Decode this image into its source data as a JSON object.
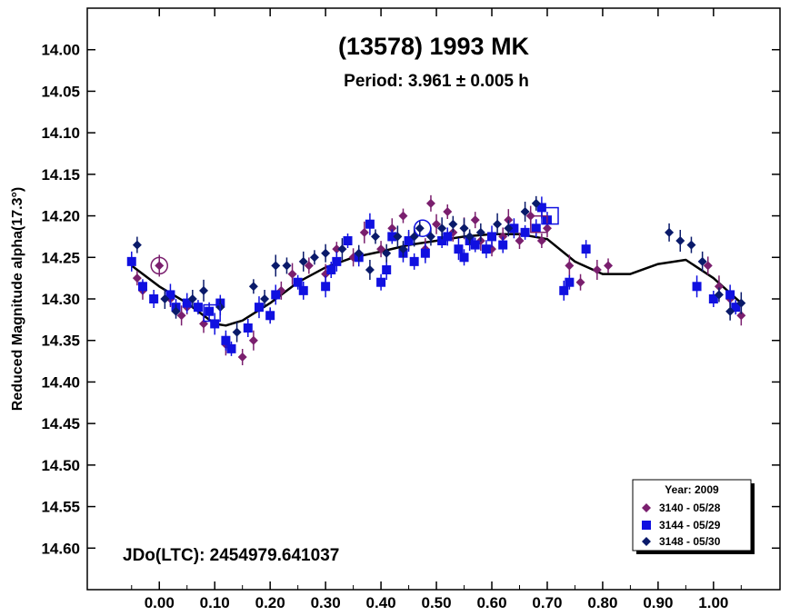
{
  "chart_data": {
    "type": "scatter",
    "title": "(13578) 1993 MK",
    "subtitle": "Period: 3.961 ± 0.005 h",
    "ylabel": "Reduced Magnitude alpha(17.3°)",
    "xlabel": "",
    "annotation": "JDo(LTC): 2454979.641037",
    "xlim": [
      -0.13,
      1.12
    ],
    "ylim": [
      14.65,
      13.95
    ],
    "y_inverted": true,
    "grid": false,
    "x_ticks": [
      "0.00",
      "0.10",
      "0.20",
      "0.30",
      "0.40",
      "0.50",
      "0.60",
      "0.70",
      "0.80",
      "0.90",
      "1.00"
    ],
    "y_ticks": [
      "14.00",
      "14.05",
      "14.10",
      "14.15",
      "14.20",
      "14.25",
      "14.30",
      "14.35",
      "14.40",
      "14.45",
      "14.50",
      "14.55",
      "14.60"
    ],
    "legend": {
      "title": "Year: 2009",
      "position": "bottom-right",
      "entries": [
        "3140 - 05/28",
        "3144 - 05/29",
        "3148 - 05/30"
      ]
    },
    "series": [
      {
        "name": "3140 - 05/28",
        "marker": "diamond",
        "color": "#7a1f6e",
        "points": [
          [
            -0.04,
            14.275
          ],
          [
            -0.03,
            14.29
          ],
          [
            0.0,
            14.26
          ],
          [
            0.02,
            14.3
          ],
          [
            0.04,
            14.32
          ],
          [
            0.05,
            14.31
          ],
          [
            0.08,
            14.33
          ],
          [
            0.12,
            14.355
          ],
          [
            0.15,
            14.37
          ],
          [
            0.17,
            14.35
          ],
          [
            0.2,
            14.32
          ],
          [
            0.22,
            14.29
          ],
          [
            0.24,
            14.27
          ],
          [
            0.27,
            14.26
          ],
          [
            0.3,
            14.27
          ],
          [
            0.32,
            14.24
          ],
          [
            0.35,
            14.25
          ],
          [
            0.37,
            14.22
          ],
          [
            0.4,
            14.24
          ],
          [
            0.42,
            14.215
          ],
          [
            0.44,
            14.2
          ],
          [
            0.45,
            14.23
          ],
          [
            0.48,
            14.24
          ],
          [
            0.49,
            14.185
          ],
          [
            0.5,
            14.21
          ],
          [
            0.52,
            14.195
          ],
          [
            0.53,
            14.22
          ],
          [
            0.55,
            14.215
          ],
          [
            0.57,
            14.205
          ],
          [
            0.58,
            14.23
          ],
          [
            0.6,
            14.24
          ],
          [
            0.62,
            14.225
          ],
          [
            0.63,
            14.205
          ],
          [
            0.65,
            14.23
          ],
          [
            0.67,
            14.2
          ],
          [
            0.69,
            14.23
          ],
          [
            0.7,
            14.215
          ],
          [
            0.74,
            14.26
          ],
          [
            0.76,
            14.28
          ],
          [
            0.79,
            14.265
          ],
          [
            0.81,
            14.26
          ],
          [
            0.99,
            14.26
          ],
          [
            1.01,
            14.285
          ],
          [
            1.03,
            14.3
          ],
          [
            1.05,
            14.32
          ]
        ]
      },
      {
        "name": "3144 - 05/29",
        "marker": "square",
        "color": "#1010e0",
        "points": [
          [
            -0.05,
            14.255
          ],
          [
            -0.03,
            14.285
          ],
          [
            -0.01,
            14.3
          ],
          [
            0.02,
            14.295
          ],
          [
            0.03,
            14.31
          ],
          [
            0.05,
            14.305
          ],
          [
            0.07,
            14.31
          ],
          [
            0.09,
            14.315
          ],
          [
            0.1,
            14.33
          ],
          [
            0.11,
            14.305
          ],
          [
            0.12,
            14.35
          ],
          [
            0.13,
            14.36
          ],
          [
            0.16,
            14.335
          ],
          [
            0.18,
            14.31
          ],
          [
            0.2,
            14.32
          ],
          [
            0.21,
            14.295
          ],
          [
            0.25,
            14.28
          ],
          [
            0.26,
            14.29
          ],
          [
            0.3,
            14.285
          ],
          [
            0.31,
            14.265
          ],
          [
            0.32,
            14.255
          ],
          [
            0.34,
            14.23
          ],
          [
            0.36,
            14.25
          ],
          [
            0.38,
            14.21
          ],
          [
            0.4,
            14.28
          ],
          [
            0.41,
            14.265
          ],
          [
            0.42,
            14.225
          ],
          [
            0.44,
            14.245
          ],
          [
            0.45,
            14.23
          ],
          [
            0.46,
            14.255
          ],
          [
            0.48,
            14.245
          ],
          [
            0.51,
            14.23
          ],
          [
            0.52,
            14.225
          ],
          [
            0.54,
            14.24
          ],
          [
            0.55,
            14.25
          ],
          [
            0.56,
            14.23
          ],
          [
            0.57,
            14.235
          ],
          [
            0.59,
            14.24
          ],
          [
            0.6,
            14.225
          ],
          [
            0.62,
            14.235
          ],
          [
            0.64,
            14.215
          ],
          [
            0.66,
            14.22
          ],
          [
            0.68,
            14.215
          ],
          [
            0.69,
            14.19
          ],
          [
            0.7,
            14.205
          ],
          [
            0.73,
            14.29
          ],
          [
            0.74,
            14.28
          ],
          [
            0.77,
            14.24
          ],
          [
            0.97,
            14.285
          ],
          [
            1.0,
            14.3
          ],
          [
            1.03,
            14.295
          ],
          [
            1.04,
            14.31
          ]
        ]
      },
      {
        "name": "3148 - 05/30",
        "marker": "diamond",
        "color": "#0a1a6a",
        "points": [
          [
            -0.04,
            14.235
          ],
          [
            0.01,
            14.3
          ],
          [
            0.03,
            14.315
          ],
          [
            0.06,
            14.3
          ],
          [
            0.08,
            14.29
          ],
          [
            0.11,
            14.31
          ],
          [
            0.14,
            14.34
          ],
          [
            0.17,
            14.285
          ],
          [
            0.19,
            14.3
          ],
          [
            0.21,
            14.26
          ],
          [
            0.23,
            14.26
          ],
          [
            0.26,
            14.255
          ],
          [
            0.28,
            14.25
          ],
          [
            0.3,
            14.245
          ],
          [
            0.33,
            14.24
          ],
          [
            0.36,
            14.245
          ],
          [
            0.38,
            14.265
          ],
          [
            0.39,
            14.225
          ],
          [
            0.41,
            14.245
          ],
          [
            0.43,
            14.225
          ],
          [
            0.44,
            14.24
          ],
          [
            0.46,
            14.225
          ],
          [
            0.47,
            14.215
          ],
          [
            0.49,
            14.225
          ],
          [
            0.51,
            14.215
          ],
          [
            0.53,
            14.21
          ],
          [
            0.55,
            14.215
          ],
          [
            0.56,
            14.225
          ],
          [
            0.58,
            14.22
          ],
          [
            0.61,
            14.21
          ],
          [
            0.63,
            14.215
          ],
          [
            0.66,
            14.195
          ],
          [
            0.68,
            14.185
          ],
          [
            0.92,
            14.22
          ],
          [
            0.94,
            14.23
          ],
          [
            0.96,
            14.235
          ],
          [
            0.98,
            14.255
          ],
          [
            1.01,
            14.295
          ],
          [
            1.03,
            14.315
          ],
          [
            1.05,
            14.305
          ]
        ]
      }
    ],
    "fit_curve": {
      "color": "#000000",
      "points": [
        [
          -0.05,
          14.26
        ],
        [
          0.0,
          14.285
        ],
        [
          0.05,
          14.305
        ],
        [
          0.1,
          14.33
        ],
        [
          0.12,
          14.332
        ],
        [
          0.15,
          14.326
        ],
        [
          0.2,
          14.305
        ],
        [
          0.25,
          14.28
        ],
        [
          0.3,
          14.262
        ],
        [
          0.35,
          14.25
        ],
        [
          0.4,
          14.243
        ],
        [
          0.45,
          14.235
        ],
        [
          0.5,
          14.23
        ],
        [
          0.55,
          14.225
        ],
        [
          0.6,
          14.222
        ],
        [
          0.65,
          14.222
        ],
        [
          0.7,
          14.228
        ],
        [
          0.75,
          14.255
        ],
        [
          0.8,
          14.27
        ],
        [
          0.85,
          14.27
        ],
        [
          0.9,
          14.258
        ],
        [
          0.95,
          14.253
        ],
        [
          1.0,
          14.275
        ],
        [
          1.05,
          14.305
        ]
      ]
    },
    "open_markers": [
      {
        "x": 0.0,
        "y": 14.26,
        "shape": "circle",
        "color": "#7a1f6e"
      },
      {
        "x": 0.095,
        "y": 14.317,
        "shape": "square",
        "color": "#1010e0"
      },
      {
        "x": 0.475,
        "y": 14.215,
        "shape": "circle",
        "color": "#1010e0"
      },
      {
        "x": 0.685,
        "y": 14.21,
        "shape": "square",
        "color": "#7a1f6e"
      },
      {
        "x": 0.705,
        "y": 14.2,
        "shape": "square",
        "color": "#1010e0"
      }
    ]
  }
}
